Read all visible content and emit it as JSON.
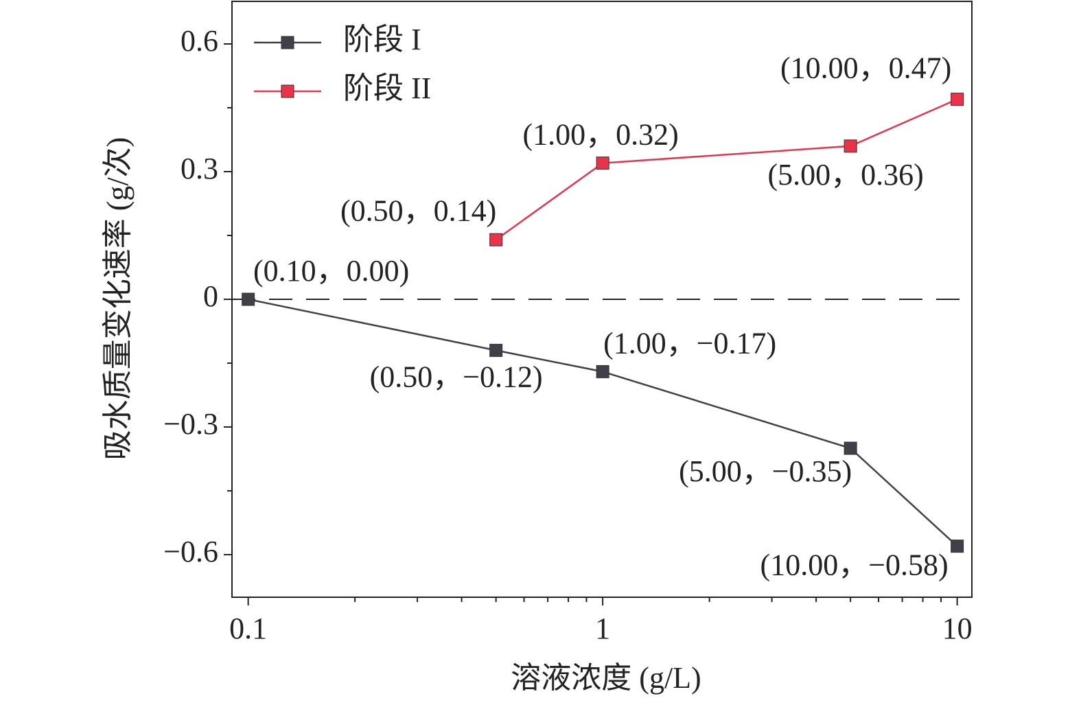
{
  "chart_data": {
    "type": "line",
    "x_label": "溶液浓度 (g/L)",
    "y_label": "吸水质量变化速率 (g/次)",
    "x_scale": "log",
    "xlim": [
      0.09,
      11
    ],
    "xticks": [
      0.1,
      1,
      10
    ],
    "ylim": [
      -0.7,
      0.7
    ],
    "yticks": [
      {
        "value": -0.6,
        "label": "−0.6"
      },
      {
        "value": -0.3,
        "label": "−0.3"
      },
      0,
      0.3,
      0.6
    ],
    "reference_lines": [
      {
        "y": 0,
        "style": "dashed"
      }
    ],
    "legend": "upper left",
    "series": [
      {
        "name": "阶段 I",
        "color": "#404048",
        "x": [
          0.1,
          0.5,
          1,
          5,
          10
        ],
        "values": [
          0,
          -0.12,
          -0.17,
          -0.35,
          -0.58
        ],
        "value_labels": [
          "(0.10，0.00)",
          "(0.50，−0.12)",
          "(1.00，−0.17)",
          "(5.00，−0.35)",
          "(10.00，−0.58)"
        ]
      },
      {
        "name": "阶段 II",
        "color": "#e8334a",
        "x": [
          0.5,
          1,
          5,
          10
        ],
        "values": [
          0.14,
          0.32,
          0.36,
          0.47
        ],
        "value_labels": [
          "(0.50，0.14)",
          "(1.00，0.32)",
          "(5.00，0.36)",
          "(10.00，0.47)"
        ]
      }
    ]
  }
}
